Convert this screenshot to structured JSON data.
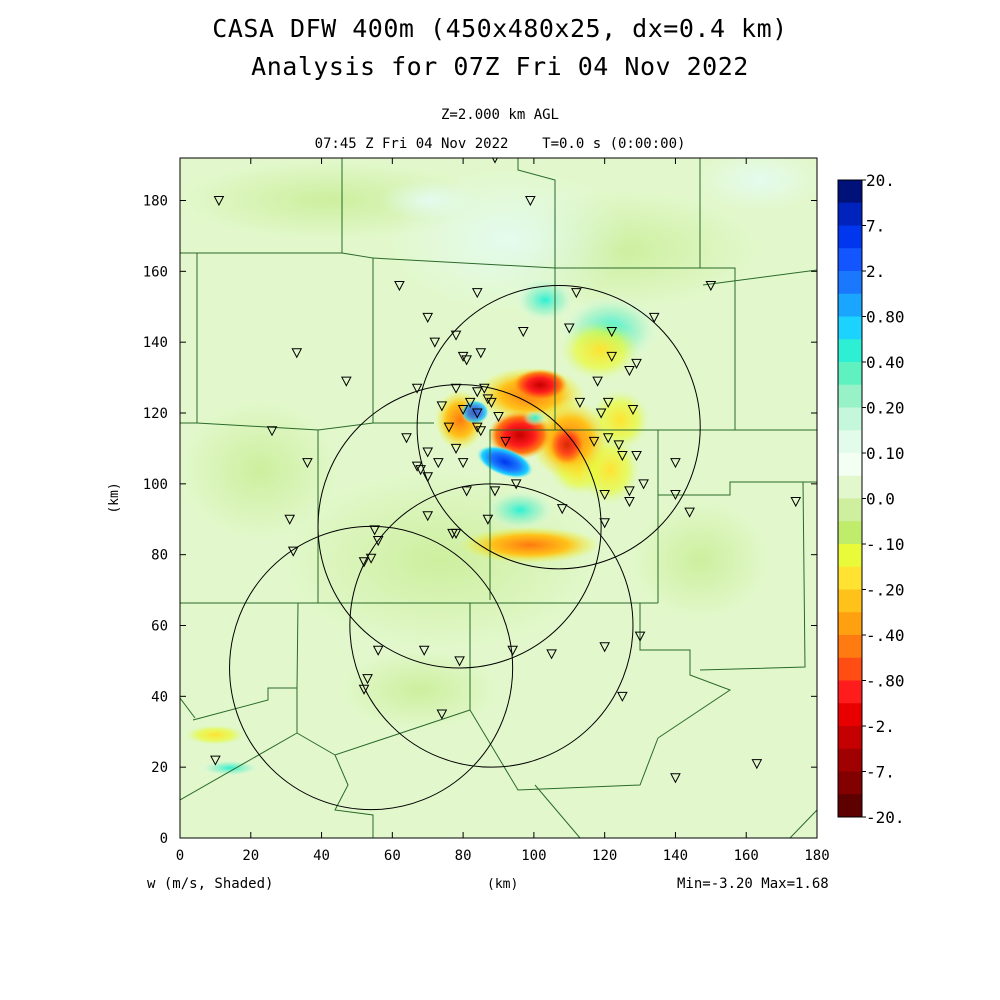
{
  "header": {
    "title_line1": "CASA DFW 400m (450x480x25, dx=0.4 km)",
    "title_line2": "Analysis for 07Z Fri 04 Nov 2022",
    "level": "Z=2.000 km AGL",
    "time": "07:45 Z Fri 04 Nov 2022    T=0.0 s (0:00:00)"
  },
  "footer": {
    "variable": "w (m/s, Shaded)",
    "x_unit": "(km)",
    "minmax": "Min=-3.20 Max=1.68"
  },
  "chart_data": {
    "type": "heatmap",
    "x_label": "(km)",
    "y_label": "(km)",
    "x_range": [
      0,
      180
    ],
    "y_range": [
      0,
      192
    ],
    "x_ticks": [
      "0",
      "20",
      "40",
      "60",
      "80",
      "100",
      "120",
      "140",
      "160",
      "180"
    ],
    "y_ticks": [
      "0",
      "20",
      "40",
      "60",
      "80",
      "100",
      "120",
      "140",
      "160",
      "180"
    ],
    "colorbar": {
      "labels": [
        "20.",
        "7.",
        "2.",
        "0.80",
        "0.40",
        "0.20",
        "0.10",
        "0.0",
        "-.10",
        "-.20",
        "-.40",
        "-.80",
        "-2.",
        "-7.",
        "-20."
      ],
      "colors": [
        "#00127a",
        "#0022bd",
        "#0036ee",
        "#1356ff",
        "#1a78ff",
        "#1aa6ff",
        "#1cd2ff",
        "#2cefd4",
        "#5ff2c0",
        "#97f2c8",
        "#c4f7dc",
        "#e2fbea",
        "#f4fff4",
        "#e2f8cc",
        "#cdef9e",
        "#c0ec6c",
        "#e8fa3a",
        "#ffe232",
        "#ffc21a",
        "#ffa010",
        "#ff7a10",
        "#ff4d14",
        "#ff1c1c",
        "#e80000",
        "#c40000",
        "#a00000",
        "#820000",
        "#5c0000"
      ]
    },
    "radars": [
      {
        "x": 107,
        "y": 116,
        "r": 40
      },
      {
        "x": 79,
        "y": 88,
        "r": 40
      },
      {
        "x": 88,
        "y": 60,
        "r": 40
      },
      {
        "x": 54,
        "y": 48,
        "r": 40
      }
    ],
    "stations": [
      [
        11,
        180
      ],
      [
        89,
        192
      ],
      [
        99,
        180
      ],
      [
        62,
        156
      ],
      [
        84,
        154
      ],
      [
        112,
        154
      ],
      [
        150,
        156
      ],
      [
        70,
        147
      ],
      [
        134,
        147
      ],
      [
        33,
        137
      ],
      [
        110,
        144
      ],
      [
        97,
        143
      ],
      [
        78,
        142
      ],
      [
        72,
        140
      ],
      [
        122,
        143
      ],
      [
        127,
        132
      ],
      [
        129,
        134
      ],
      [
        80,
        136
      ],
      [
        85,
        137
      ],
      [
        122,
        136
      ],
      [
        81,
        135
      ],
      [
        47,
        129
      ],
      [
        67,
        127
      ],
      [
        118,
        129
      ],
      [
        86,
        127
      ],
      [
        78,
        127
      ],
      [
        84,
        126
      ],
      [
        74,
        122
      ],
      [
        82,
        123
      ],
      [
        80,
        121
      ],
      [
        87,
        124
      ],
      [
        84,
        120
      ],
      [
        88,
        123
      ],
      [
        113,
        123
      ],
      [
        119,
        120
      ],
      [
        121,
        123
      ],
      [
        128,
        121
      ],
      [
        90,
        119
      ],
      [
        26,
        115
      ],
      [
        84,
        116
      ],
      [
        64,
        113
      ],
      [
        76,
        116
      ],
      [
        85,
        115
      ],
      [
        92,
        112
      ],
      [
        117,
        112
      ],
      [
        121,
        113
      ],
      [
        124,
        111
      ],
      [
        129,
        108
      ],
      [
        78,
        110
      ],
      [
        70,
        109
      ],
      [
        36,
        106
      ],
      [
        80,
        106
      ],
      [
        125,
        108
      ],
      [
        140,
        106
      ],
      [
        73,
        106
      ],
      [
        67,
        105
      ],
      [
        68,
        104
      ],
      [
        70,
        102
      ],
      [
        131,
        100
      ],
      [
        95,
        100
      ],
      [
        89,
        98
      ],
      [
        81,
        98
      ],
      [
        120,
        97
      ],
      [
        127,
        98
      ],
      [
        140,
        97
      ],
      [
        108,
        93
      ],
      [
        144,
        92
      ],
      [
        174,
        95
      ],
      [
        127,
        95
      ],
      [
        70,
        91
      ],
      [
        31,
        90
      ],
      [
        87,
        90
      ],
      [
        120,
        89
      ],
      [
        55,
        87
      ],
      [
        77,
        86
      ],
      [
        78,
        86
      ],
      [
        56,
        84
      ],
      [
        32,
        81
      ],
      [
        54,
        79
      ],
      [
        52,
        78
      ],
      [
        56,
        53
      ],
      [
        69,
        53
      ],
      [
        79,
        50
      ],
      [
        94,
        53
      ],
      [
        105,
        52
      ],
      [
        120,
        54
      ],
      [
        130,
        57
      ],
      [
        53,
        45
      ],
      [
        52,
        42
      ],
      [
        125,
        40
      ],
      [
        74,
        35
      ],
      [
        140,
        17
      ],
      [
        163,
        21
      ],
      [
        10,
        22
      ]
    ]
  }
}
